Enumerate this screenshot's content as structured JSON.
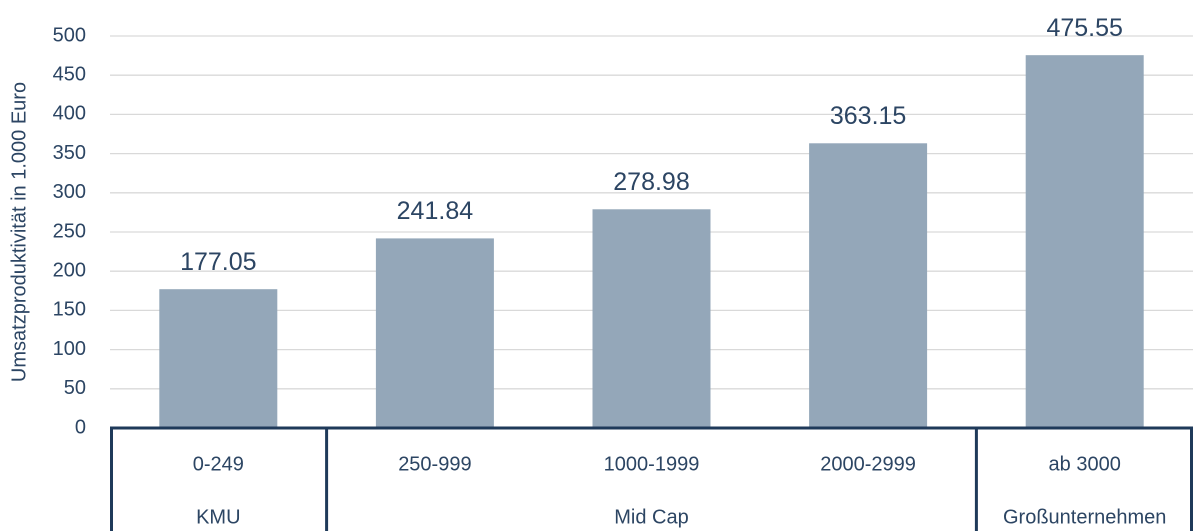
{
  "chart_data": {
    "type": "bar",
    "y_axis_label": "Umsatzproduktivität in 1.000 Euro",
    "categories": [
      "0-249",
      "250-999",
      "1000-1999",
      "2000-2999",
      "ab 3000"
    ],
    "category_groups": [
      "KMU",
      "Mid Cap",
      "Mid Cap",
      "Mid Cap",
      "Großunternehmen"
    ],
    "values": [
      177.05,
      241.84,
      278.98,
      363.15,
      475.55
    ],
    "color": "#94a7b9",
    "ylim": [
      0,
      500
    ],
    "yticks": [
      0,
      50,
      100,
      150,
      200,
      250,
      300,
      350,
      400,
      450,
      500
    ],
    "grid": true
  }
}
